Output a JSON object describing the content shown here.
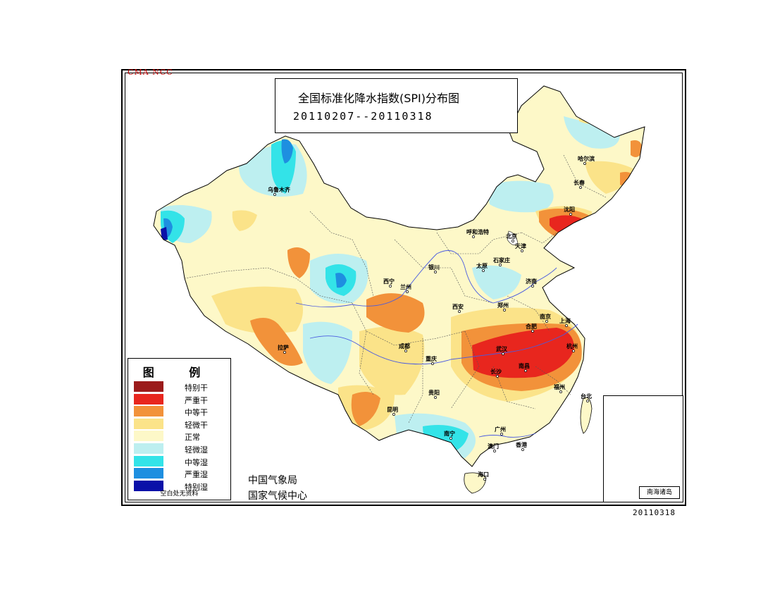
{
  "watermark": "CMA NCC",
  "title": {
    "main": "全国标准化降水指数(SPI)分布图",
    "period": "20110207--20110318"
  },
  "legend": {
    "title": "图 例",
    "items": [
      {
        "label": "特别干",
        "color": "#9b1b1b"
      },
      {
        "label": "严重干",
        "color": "#e8261e"
      },
      {
        "label": "中等干",
        "color": "#f2923a"
      },
      {
        "label": "轻微干",
        "color": "#fbe389"
      },
      {
        "label": "正常",
        "color": "#fdf8c8"
      },
      {
        "label": "轻微湿",
        "color": "#bdeff0"
      },
      {
        "label": "中等湿",
        "color": "#33e3e8"
      },
      {
        "label": "严重湿",
        "color": "#1e8fe0"
      },
      {
        "label": "特别湿",
        "color": "#0a10a8"
      }
    ],
    "note": "空白处无资料"
  },
  "organization": {
    "line1": "中国气象局",
    "line2": "国家气候中心"
  },
  "date_stamp": "20110318",
  "inset_label": "南海诸岛",
  "cities": [
    {
      "name": "乌鲁木齐"
    },
    {
      "name": "哈尔滨"
    },
    {
      "name": "长春"
    },
    {
      "name": "沈阳"
    },
    {
      "name": "呼和浩特"
    },
    {
      "name": "北京"
    },
    {
      "name": "天津"
    },
    {
      "name": "石家庄"
    },
    {
      "name": "太原"
    },
    {
      "name": "银川"
    },
    {
      "name": "济南"
    },
    {
      "name": "西宁"
    },
    {
      "name": "兰州"
    },
    {
      "name": "西安"
    },
    {
      "name": "郑州"
    },
    {
      "name": "合肥"
    },
    {
      "name": "南京"
    },
    {
      "name": "上海"
    },
    {
      "name": "杭州"
    },
    {
      "name": "武汉"
    },
    {
      "name": "南昌"
    },
    {
      "name": "长沙"
    },
    {
      "name": "福州"
    },
    {
      "name": "台北"
    },
    {
      "name": "成都"
    },
    {
      "name": "重庆"
    },
    {
      "name": "贵阳"
    },
    {
      "name": "昆明"
    },
    {
      "name": "南宁"
    },
    {
      "name": "广州"
    },
    {
      "name": "澳门"
    },
    {
      "name": "香港"
    },
    {
      "name": "海口"
    },
    {
      "name": "拉萨"
    }
  ]
}
